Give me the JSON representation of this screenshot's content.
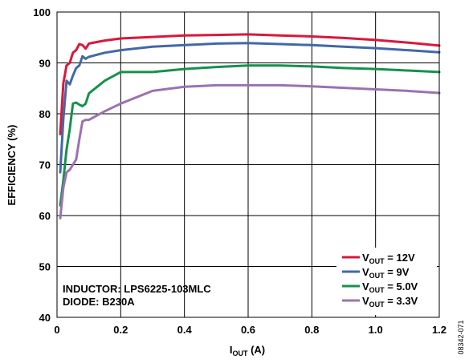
{
  "chart_data": {
    "type": "line",
    "xlabel": "I",
    "xlabel_sub": "OUT",
    "xlabel_unit": " (A)",
    "ylabel": "EFFICIENCY (%)",
    "xlim": [
      0,
      1.2
    ],
    "ylim": [
      40,
      100
    ],
    "xticks": [
      "0",
      "0.2",
      "0.4",
      "0.6",
      "0.8",
      "1.0",
      "1.2"
    ],
    "yticks": [
      "40",
      "50",
      "60",
      "70",
      "80",
      "90",
      "100"
    ],
    "grid": true,
    "legend_position": "bottom-right",
    "annotations": [
      "INDUCTOR: LPS6225-103MLC",
      "DIODE: B230A"
    ],
    "figure_number": "08342-071",
    "series": [
      {
        "name": "V",
        "name_sub": "OUT",
        "name_suffix": " = 12V",
        "color": "#d9183b",
        "x": [
          0.01,
          0.02,
          0.03,
          0.04,
          0.05,
          0.06,
          0.07,
          0.08,
          0.09,
          0.1,
          0.15,
          0.2,
          0.3,
          0.4,
          0.5,
          0.6,
          0.7,
          0.8,
          0.9,
          1.0,
          1.1,
          1.2
        ],
        "y": [
          76.0,
          86.0,
          89.5,
          90.0,
          92.0,
          92.5,
          93.7,
          93.5,
          92.8,
          93.8,
          94.4,
          94.8,
          95.1,
          95.4,
          95.5,
          95.6,
          95.4,
          95.2,
          94.9,
          94.5,
          94.0,
          93.4
        ]
      },
      {
        "name": "V",
        "name_sub": "OUT",
        "name_suffix": " = 9V",
        "color": "#4169a6",
        "x": [
          0.01,
          0.02,
          0.03,
          0.04,
          0.05,
          0.06,
          0.07,
          0.08,
          0.09,
          0.1,
          0.15,
          0.2,
          0.3,
          0.4,
          0.5,
          0.6,
          0.7,
          0.8,
          0.9,
          1.0,
          1.1,
          1.2
        ],
        "y": [
          68.5,
          79.0,
          86.5,
          85.8,
          87.5,
          89.0,
          89.5,
          91.3,
          90.8,
          91.2,
          92.0,
          92.5,
          93.2,
          93.5,
          93.8,
          93.9,
          93.7,
          93.5,
          93.2,
          92.9,
          92.5,
          92.1
        ]
      },
      {
        "name": "V",
        "name_sub": "OUT",
        "name_suffix": " = 5.0V",
        "color": "#16914b",
        "x": [
          0.01,
          0.02,
          0.03,
          0.04,
          0.05,
          0.06,
          0.07,
          0.08,
          0.09,
          0.1,
          0.15,
          0.2,
          0.3,
          0.4,
          0.5,
          0.6,
          0.7,
          0.8,
          0.9,
          1.0,
          1.1,
          1.2
        ],
        "y": [
          62.0,
          67.0,
          73.0,
          77.0,
          82.0,
          82.2,
          81.8,
          81.5,
          82.0,
          84.0,
          86.5,
          88.2,
          88.2,
          88.8,
          89.2,
          89.5,
          89.5,
          89.3,
          89.0,
          88.8,
          88.5,
          88.2
        ]
      },
      {
        "name": "V",
        "name_sub": "OUT",
        "name_suffix": " = 3.3V",
        "color": "#9b72b0",
        "x": [
          0.01,
          0.02,
          0.03,
          0.04,
          0.05,
          0.06,
          0.07,
          0.08,
          0.09,
          0.1,
          0.15,
          0.2,
          0.3,
          0.4,
          0.5,
          0.6,
          0.7,
          0.8,
          0.9,
          1.0,
          1.1,
          1.2
        ],
        "y": [
          59.5,
          65.5,
          68.5,
          69.0,
          70.0,
          71.0,
          75.0,
          78.5,
          78.8,
          78.8,
          80.5,
          82.0,
          84.5,
          85.3,
          85.6,
          85.6,
          85.6,
          85.4,
          85.1,
          84.8,
          84.5,
          84.1
        ]
      }
    ]
  }
}
